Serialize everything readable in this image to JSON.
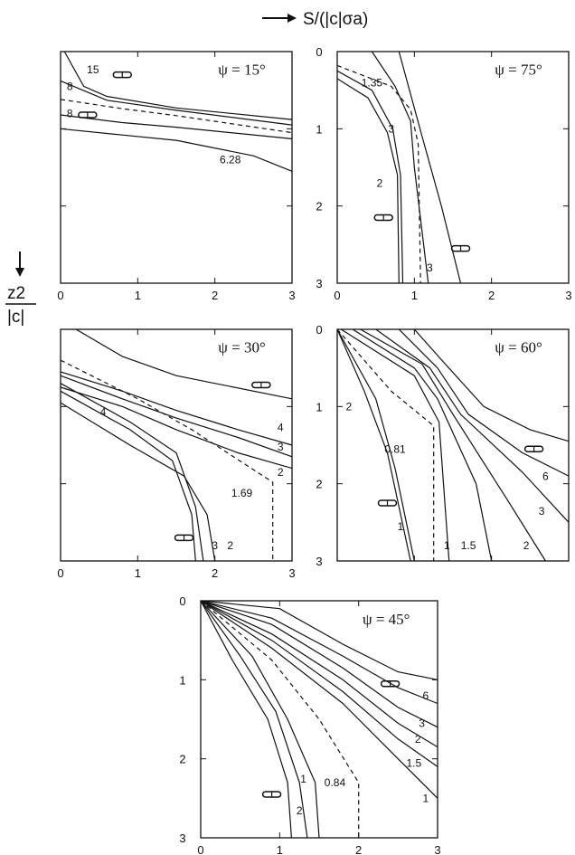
{
  "figure": {
    "x_axis_title": "S/(|c|σa)",
    "y_axis_title_num": "z2",
    "y_axis_title_den": "|c|"
  },
  "chart_data": [
    {
      "type": "line",
      "panel_label": "ψ = 15°",
      "xlim": [
        0,
        3
      ],
      "ylim": [
        0,
        3
      ],
      "y_inverted": true,
      "x_ticks": [
        "0",
        "1",
        "2",
        "3"
      ],
      "y_ticks": [],
      "series": [
        {
          "name": "15",
          "points": [
            [
              0.05,
              0
            ],
            [
              0.3,
              0.45
            ],
            [
              0.6,
              0.58
            ],
            [
              1.5,
              0.73
            ],
            [
              3,
              0.88
            ]
          ]
        },
        {
          "name": "8",
          "points": [
            [
              0,
              0.38
            ],
            [
              0.6,
              0.63
            ],
            [
              1.5,
              0.76
            ],
            [
              3,
              0.95
            ]
          ]
        },
        {
          "name": "6.28",
          "dashed": true,
          "points": [
            [
              0,
              0.62
            ],
            [
              0.8,
              0.74
            ],
            [
              1.5,
              0.83
            ],
            [
              3,
              1.05
            ]
          ]
        },
        {
          "name": "8",
          "points": [
            [
              0,
              0.82
            ],
            [
              0.8,
              0.92
            ],
            [
              1.5,
              0.98
            ],
            [
              3,
              1.13
            ]
          ]
        },
        {
          "name": "",
          "points": [
            [
              0,
              1.0
            ],
            [
              0.8,
              1.08
            ],
            [
              1.5,
              1.15
            ],
            [
              2.5,
              1.35
            ],
            [
              3,
              1.55
            ]
          ]
        }
      ],
      "annotations": [
        {
          "text": "15",
          "x": 0.42,
          "y": 0.28
        },
        {
          "text": "8",
          "x": 0.12,
          "y": 0.5
        },
        {
          "text": "8",
          "x": 0.12,
          "y": 0.85
        },
        {
          "text": "6.28",
          "x": 2.2,
          "y": 1.45
        }
      ]
    },
    {
      "type": "line",
      "panel_label": "ψ = 75°",
      "xlim": [
        0,
        3
      ],
      "ylim": [
        0,
        3
      ],
      "y_inverted": true,
      "x_ticks": [
        "0",
        "1",
        "2",
        "3"
      ],
      "y_ticks": [
        "0",
        "1",
        "2",
        "3"
      ],
      "series": [
        {
          "name": "1.35",
          "dashed": true,
          "points": [
            [
              0,
              0.18
            ],
            [
              0.7,
              0.45
            ],
            [
              0.95,
              0.75
            ],
            [
              1.05,
              1.2
            ],
            [
              1.08,
              3
            ]
          ]
        },
        {
          "name": "",
          "points": [
            [
              0.45,
              0
            ],
            [
              0.75,
              0.45
            ],
            [
              0.95,
              0.9
            ],
            [
              1.0,
              1.5
            ],
            [
              1.18,
              3
            ]
          ]
        },
        {
          "name": "3",
          "points": [
            [
              0,
              0.25
            ],
            [
              0.45,
              0.5
            ],
            [
              0.72,
              1.0
            ],
            [
              0.82,
              1.6
            ],
            [
              0.85,
              3
            ]
          ]
        },
        {
          "name": "2",
          "points": [
            [
              0,
              0.35
            ],
            [
              0.4,
              0.6
            ],
            [
              0.65,
              1.05
            ],
            [
              0.78,
              1.6
            ],
            [
              0.8,
              3
            ]
          ]
        },
        {
          "name": "3",
          "points": [
            [
              0.8,
              0
            ],
            [
              1.1,
              1.1
            ],
            [
              1.35,
              2.0
            ],
            [
              1.6,
              3
            ]
          ]
        }
      ],
      "annotations": [
        {
          "text": "1.35",
          "x": 0.45,
          "y": 0.45
        },
        {
          "text": "3",
          "x": 0.7,
          "y": 1.05
        },
        {
          "text": "2",
          "x": 0.55,
          "y": 1.75
        },
        {
          "text": "3",
          "x": 1.2,
          "y": 2.85
        }
      ]
    },
    {
      "type": "line",
      "panel_label": "ψ = 30°",
      "xlim": [
        0,
        3
      ],
      "ylim": [
        0,
        3
      ],
      "y_inverted": true,
      "x_ticks": [
        "0",
        "1",
        "2",
        "3"
      ],
      "y_ticks": [],
      "series": [
        {
          "name": "",
          "points": [
            [
              0.2,
              0
            ],
            [
              0.8,
              0.35
            ],
            [
              1.5,
              0.6
            ],
            [
              3,
              0.9
            ]
          ]
        },
        {
          "name": "4",
          "points": [
            [
              0,
              0.55
            ],
            [
              0.8,
              0.8
            ],
            [
              1.5,
              1.05
            ],
            [
              2.3,
              1.3
            ],
            [
              3,
              1.5
            ]
          ]
        },
        {
          "name": "3",
          "points": [
            [
              0,
              0.6
            ],
            [
              0.8,
              0.9
            ],
            [
              1.5,
              1.15
            ],
            [
              2.3,
              1.4
            ],
            [
              3,
              1.65
            ]
          ]
        },
        {
          "name": "2",
          "points": [
            [
              0,
              0.75
            ],
            [
              0.8,
              1.0
            ],
            [
              1.5,
              1.3
            ],
            [
              2.3,
              1.6
            ],
            [
              3,
              1.8
            ]
          ]
        },
        {
          "name": "1.69",
          "dashed": true,
          "points": [
            [
              0,
              0.4
            ],
            [
              1.0,
              0.9
            ],
            [
              1.7,
              1.3
            ],
            [
              2.75,
              1.98
            ],
            [
              2.75,
              3
            ]
          ]
        },
        {
          "name": "4",
          "points": [
            [
              0,
              0.7
            ],
            [
              0.9,
              1.2
            ],
            [
              1.5,
              1.6
            ],
            [
              1.75,
              2.3
            ],
            [
              1.85,
              3
            ]
          ]
        },
        {
          "name": "3",
          "points": [
            [
              0,
              0.8
            ],
            [
              0.9,
              1.3
            ],
            [
              1.45,
              1.7
            ],
            [
              1.7,
              2.4
            ],
            [
              1.75,
              3
            ]
          ]
        },
        {
          "name": "2",
          "points": [
            [
              0,
              0.95
            ],
            [
              0.9,
              1.5
            ],
            [
              1.6,
              1.9
            ],
            [
              1.9,
              2.4
            ],
            [
              2.0,
              3
            ]
          ]
        }
      ],
      "annotations": [
        {
          "text": "4",
          "x": 0.55,
          "y": 1.12
        },
        {
          "text": "4",
          "x": 2.85,
          "y": 1.32
        },
        {
          "text": "3",
          "x": 2.85,
          "y": 1.57
        },
        {
          "text": "2",
          "x": 2.85,
          "y": 1.9
        },
        {
          "text": "1.69",
          "x": 2.35,
          "y": 2.17
        },
        {
          "text": "3",
          "x": 2.0,
          "y": 2.85
        },
        {
          "text": "2",
          "x": 2.2,
          "y": 2.85
        }
      ]
    },
    {
      "type": "line",
      "panel_label": "ψ = 60°",
      "xlim": [
        0,
        3
      ],
      "ylim": [
        0,
        3
      ],
      "y_inverted": true,
      "x_ticks": [],
      "y_ticks": [
        "0",
        "1",
        "2",
        "3"
      ],
      "series": [
        {
          "name": "2",
          "points": [
            [
              0,
              0
            ],
            [
              0.35,
              0.8
            ],
            [
              0.65,
              1.6
            ],
            [
              0.95,
              3
            ]
          ]
        },
        {
          "name": "1",
          "points": [
            [
              0,
              0
            ],
            [
              0.5,
              0.9
            ],
            [
              0.75,
              1.8
            ],
            [
              1.0,
              3
            ]
          ]
        },
        {
          "name": "0.81",
          "dashed": true,
          "points": [
            [
              0,
              0
            ],
            [
              0.7,
              0.8
            ],
            [
              1.25,
              1.25
            ],
            [
              1.25,
              3
            ]
          ]
        },
        {
          "name": "1",
          "points": [
            [
              0.05,
              0
            ],
            [
              1.0,
              0.6
            ],
            [
              1.32,
              1.2
            ],
            [
              1.45,
              3
            ]
          ]
        },
        {
          "name": "1.5",
          "points": [
            [
              0.2,
              0
            ],
            [
              1.0,
              0.5
            ],
            [
              1.3,
              0.9
            ],
            [
              1.8,
              2.0
            ],
            [
              2.0,
              3
            ]
          ]
        },
        {
          "name": "2",
          "points": [
            [
              0.3,
              0
            ],
            [
              1.1,
              0.45
            ],
            [
              1.5,
              1.1
            ],
            [
              2.2,
              2.2
            ],
            [
              2.7,
              3
            ]
          ]
        },
        {
          "name": "3",
          "points": [
            [
              0.5,
              0
            ],
            [
              1.2,
              0.5
            ],
            [
              1.6,
              1.1
            ],
            [
              2.4,
              1.85
            ],
            [
              3,
              2.5
            ]
          ]
        },
        {
          "name": "6",
          "points": [
            [
              0.8,
              0
            ],
            [
              1.3,
              0.5
            ],
            [
              1.7,
              1.1
            ],
            [
              2.4,
              1.6
            ],
            [
              3,
              1.9
            ]
          ]
        },
        {
          "name": "",
          "points": [
            [
              1.0,
              0
            ],
            [
              1.4,
              0.45
            ],
            [
              1.9,
              1.0
            ],
            [
              2.5,
              1.3
            ],
            [
              3,
              1.45
            ]
          ]
        }
      ],
      "annotations": [
        {
          "text": "2",
          "x": 0.15,
          "y": 1.05
        },
        {
          "text": "0.81",
          "x": 0.75,
          "y": 1.6
        },
        {
          "text": "1",
          "x": 0.82,
          "y": 2.6
        },
        {
          "text": "1",
          "x": 1.42,
          "y": 2.85
        },
        {
          "text": "1.5",
          "x": 1.7,
          "y": 2.85
        },
        {
          "text": "2",
          "x": 2.45,
          "y": 2.85
        },
        {
          "text": "3",
          "x": 2.65,
          "y": 2.4
        },
        {
          "text": "6",
          "x": 2.7,
          "y": 1.95
        }
      ]
    },
    {
      "type": "line",
      "panel_label": "ψ = 45°",
      "xlim": [
        0,
        3
      ],
      "ylim": [
        0,
        3
      ],
      "y_inverted": true,
      "x_ticks": [
        "0",
        "1",
        "2",
        "3"
      ],
      "y_ticks": [
        "0",
        "1",
        "2",
        "3"
      ],
      "series": [
        {
          "name": "",
          "points": [
            [
              0,
              0
            ],
            [
              0.4,
              0.75
            ],
            [
              0.85,
              1.5
            ],
            [
              1.1,
              2.3
            ],
            [
              1.15,
              3
            ]
          ]
        },
        {
          "name": "2",
          "points": [
            [
              0,
              0
            ],
            [
              0.5,
              0.7
            ],
            [
              0.95,
              1.4
            ],
            [
              1.25,
              2.3
            ],
            [
              1.35,
              3
            ]
          ]
        },
        {
          "name": "1",
          "points": [
            [
              0,
              0
            ],
            [
              0.65,
              0.7
            ],
            [
              1.1,
              1.5
            ],
            [
              1.45,
              2.3
            ],
            [
              1.5,
              3
            ]
          ]
        },
        {
          "name": "0.84",
          "dashed": true,
          "points": [
            [
              0,
              0
            ],
            [
              0.9,
              0.75
            ],
            [
              1.5,
              1.5
            ],
            [
              2.0,
              2.3
            ],
            [
              2.0,
              3
            ]
          ]
        },
        {
          "name": "1",
          "points": [
            [
              0,
              0
            ],
            [
              0.9,
              0.6
            ],
            [
              1.8,
              1.3
            ],
            [
              2.5,
              2.0
            ],
            [
              3,
              2.5
            ]
          ]
        },
        {
          "name": "1.5",
          "points": [
            [
              0,
              0
            ],
            [
              0.9,
              0.5
            ],
            [
              1.8,
              1.15
            ],
            [
              2.5,
              1.75
            ],
            [
              3,
              2.1
            ]
          ]
        },
        {
          "name": "2",
          "points": [
            [
              0,
              0
            ],
            [
              0.9,
              0.42
            ],
            [
              1.8,
              1.0
            ],
            [
              2.5,
              1.55
            ],
            [
              3,
              1.85
            ]
          ]
        },
        {
          "name": "3",
          "points": [
            [
              0,
              0
            ],
            [
              0.9,
              0.3
            ],
            [
              1.8,
              0.85
            ],
            [
              2.5,
              1.35
            ],
            [
              3,
              1.6
            ]
          ]
        },
        {
          "name": "6",
          "points": [
            [
              0,
              0
            ],
            [
              0.9,
              0.22
            ],
            [
              1.8,
              0.7
            ],
            [
              2.5,
              1.1
            ],
            [
              3,
              1.3
            ]
          ]
        },
        {
          "name": "",
          "points": [
            [
              0,
              0
            ],
            [
              1.0,
              0.1
            ],
            [
              1.8,
              0.55
            ],
            [
              2.5,
              0.9
            ],
            [
              3,
              1.0
            ]
          ]
        }
      ],
      "annotations": [
        {
          "text": "2",
          "x": 1.25,
          "y": 2.7
        },
        {
          "text": "1",
          "x": 1.3,
          "y": 2.3
        },
        {
          "text": "0.84",
          "x": 1.7,
          "y": 2.35
        },
        {
          "text": "1",
          "x": 2.85,
          "y": 2.55
        },
        {
          "text": "1.5",
          "x": 2.7,
          "y": 2.1
        },
        {
          "text": "2",
          "x": 2.75,
          "y": 1.8
        },
        {
          "text": "3",
          "x": 2.8,
          "y": 1.6
        },
        {
          "text": "6",
          "x": 2.85,
          "y": 1.25
        }
      ]
    }
  ]
}
